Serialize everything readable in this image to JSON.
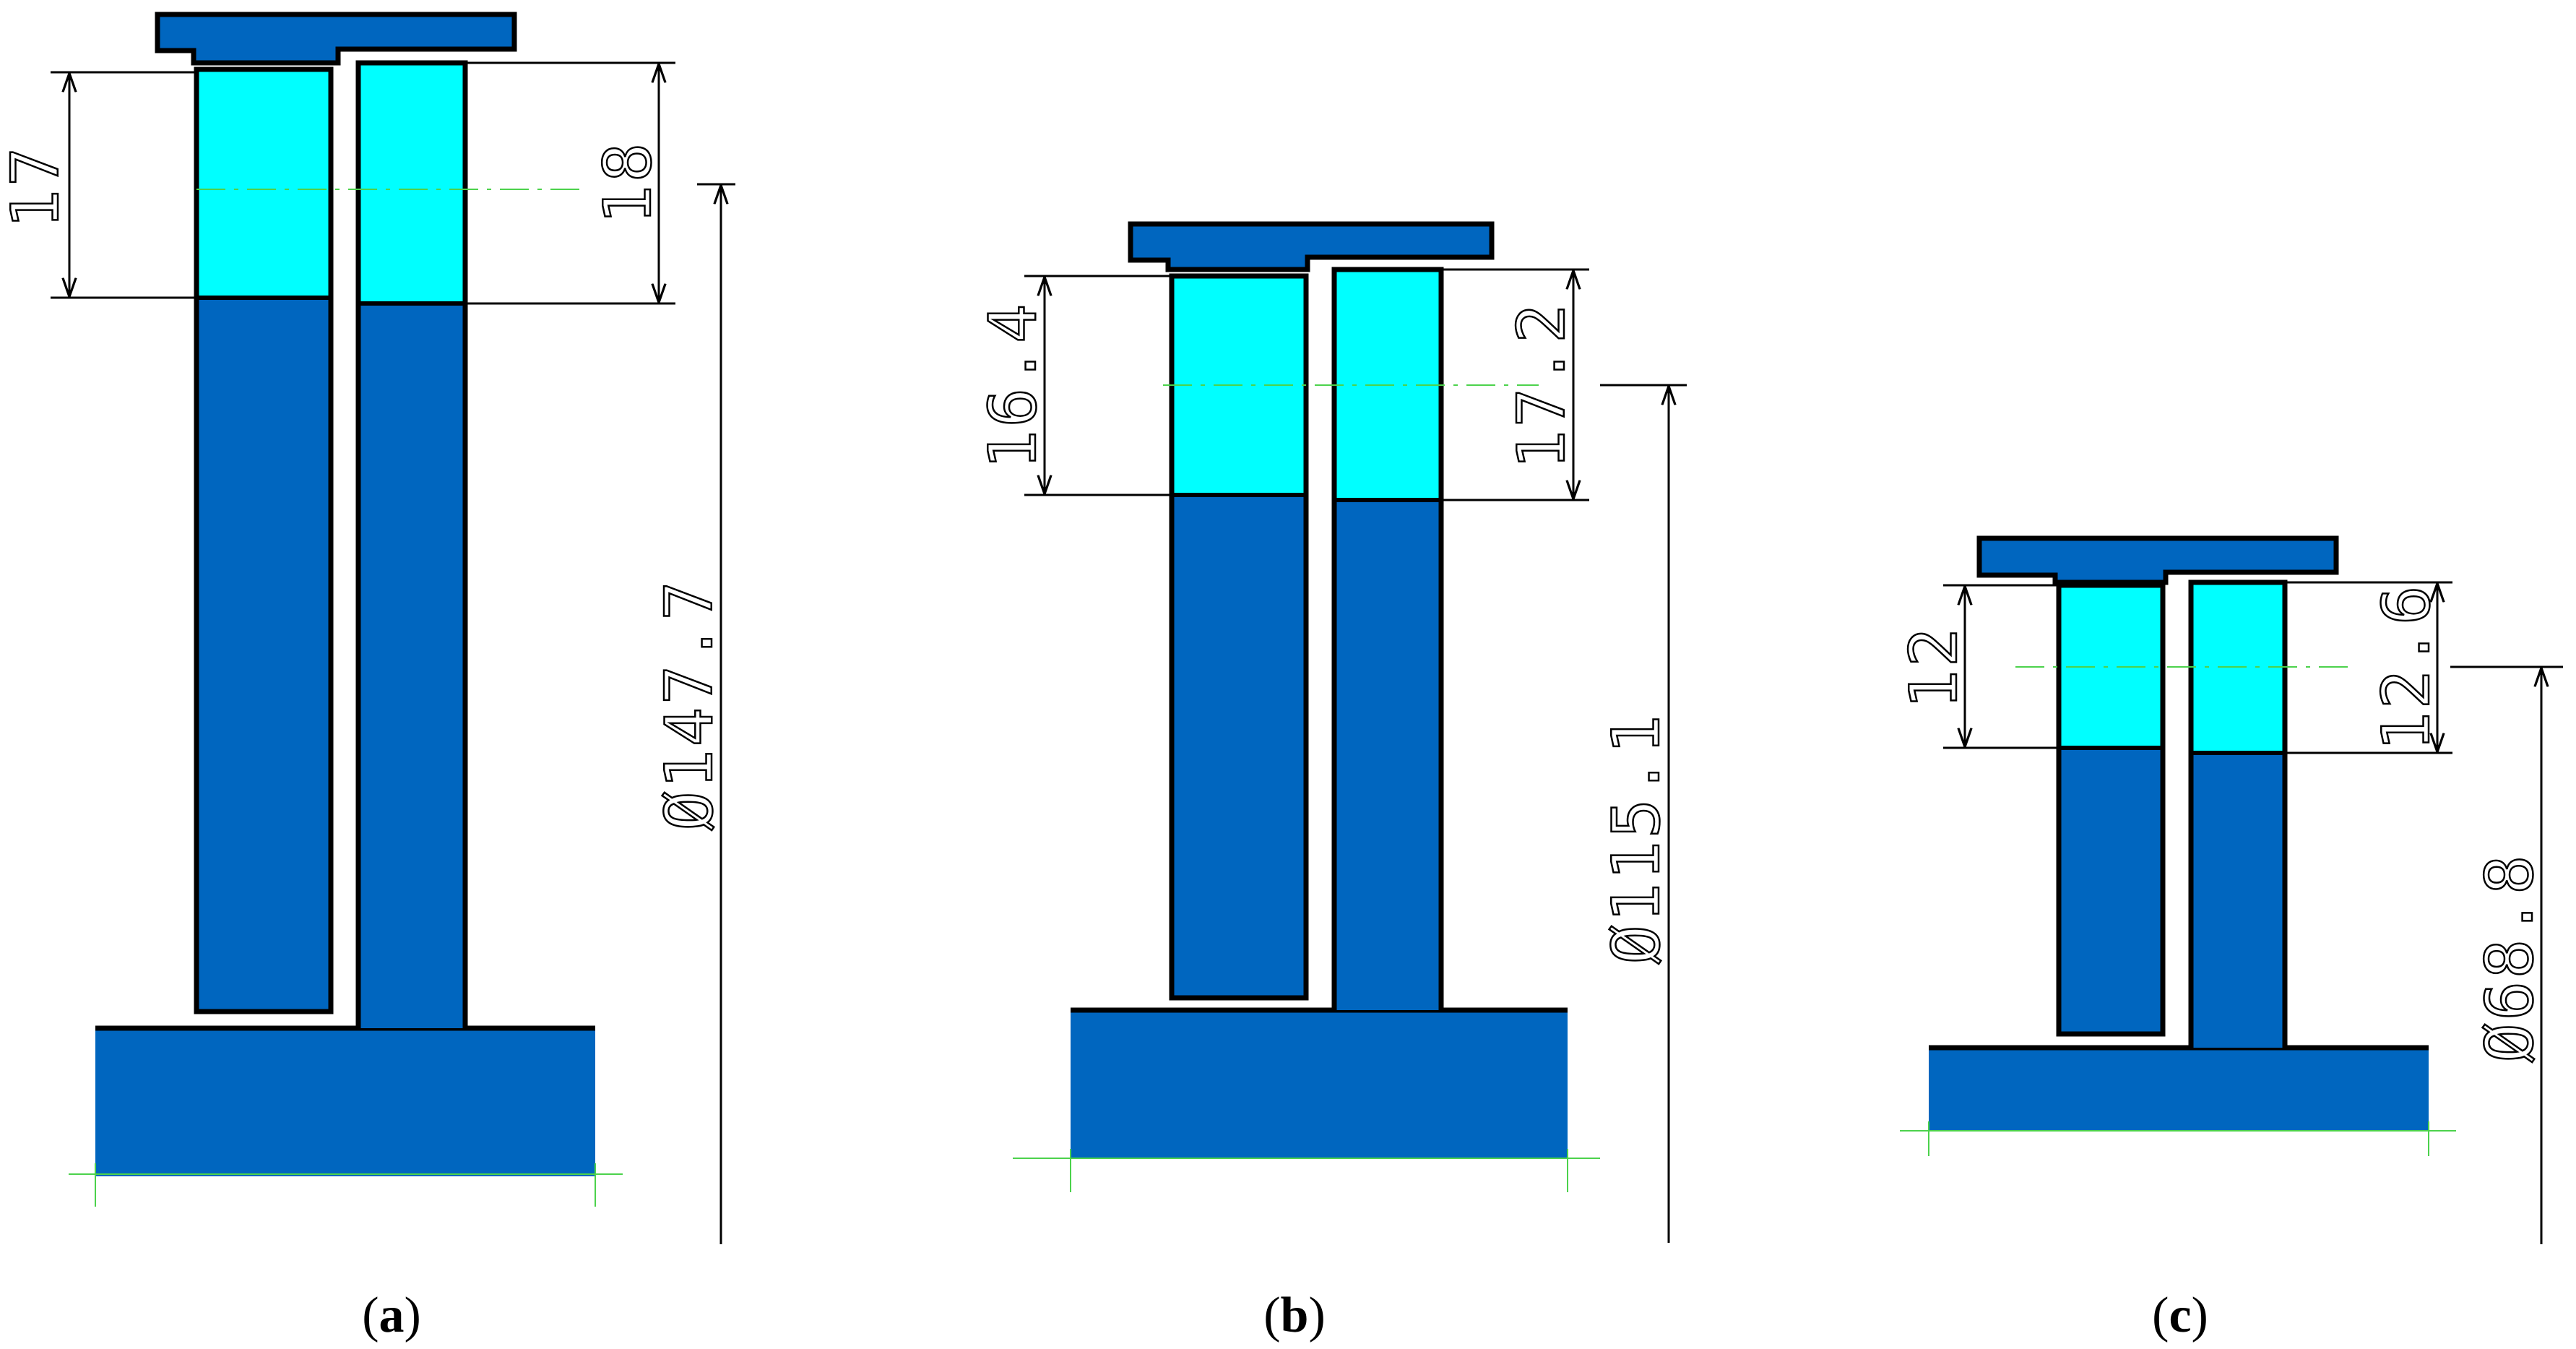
{
  "colors": {
    "body_fill": "#0066bf",
    "window_fill": "#00ffff",
    "outline": "#000000",
    "center_line": "#4cd24c",
    "background": "#ffffff"
  },
  "panels": [
    {
      "id": "a",
      "caption_open": "(",
      "caption_letter": "a",
      "caption_close": ")",
      "left_dimension": "17",
      "right_dimension": "18",
      "diameter_dimension": "Ø147.7"
    },
    {
      "id": "b",
      "caption_open": "(",
      "caption_letter": "b",
      "caption_close": ")",
      "left_dimension": "16.4",
      "right_dimension": "17.2",
      "diameter_dimension": "Ø115.1"
    },
    {
      "id": "c",
      "caption_open": "(",
      "caption_letter": "c",
      "caption_close": ")",
      "left_dimension": "12",
      "right_dimension": "12.6",
      "diameter_dimension": "Ø68.8"
    }
  ]
}
